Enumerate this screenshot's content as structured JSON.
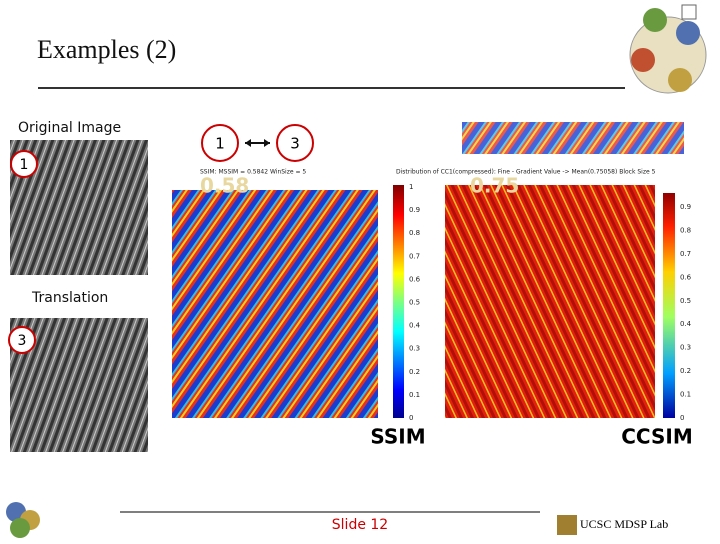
{
  "header": {
    "title": "Examples (2)"
  },
  "left": {
    "original_label": "Original Image",
    "original_badge": 1,
    "translation_label": "Translation",
    "translation_badge": 3
  },
  "legend": {
    "from": 1,
    "to": 3
  },
  "ssim": {
    "score": 0.58,
    "caption": "SSIM: MSSIM = 0.5842 WinSize = 5",
    "label": "SSIM",
    "colorbar_ticks": [
      1,
      0.9,
      0.8,
      0.7,
      0.6,
      0.5,
      0.4,
      0.3,
      0.2,
      0.1,
      0
    ]
  },
  "ccsim": {
    "score": 0.75,
    "caption": "Distribution of CC1(compressed): Fine - Gradient Value -> Mean(0.75058) Block Size 5",
    "label": "CCSIM",
    "colorbar_ticks": [
      0.9,
      0.8,
      0.7,
      0.6,
      0.5,
      0.4,
      0.3,
      0.2,
      0.1,
      0
    ]
  },
  "footer": {
    "slide": "Slide 12",
    "lab": "UCSC MDSP Lab"
  }
}
